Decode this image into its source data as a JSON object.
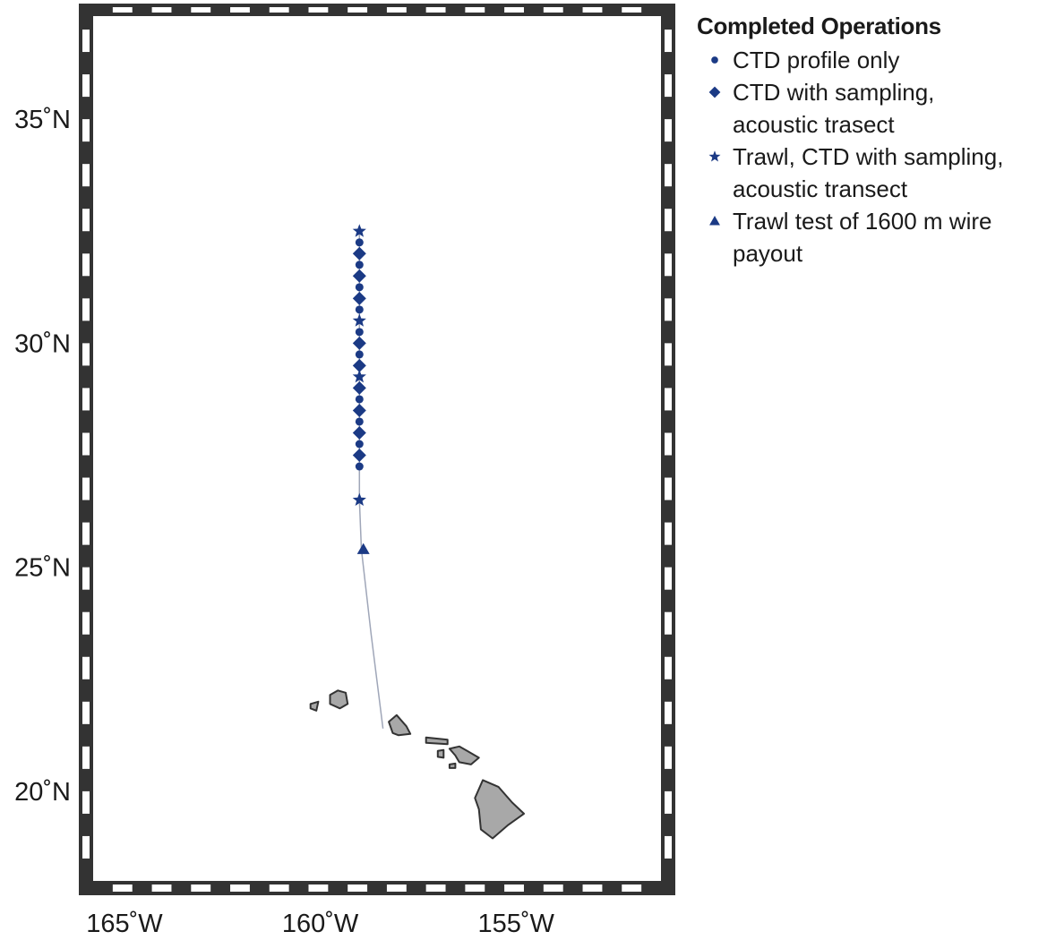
{
  "map": {
    "lon_range": [
      -165.8,
      -151.3
    ],
    "lat_range": [
      18.0,
      37.3
    ],
    "colors": {
      "marker": "#1b3a85",
      "land": "#a8a8a8",
      "coast": "#333333",
      "track": "#9fa6b8",
      "frame_dark": "#333333"
    },
    "lon_ticks": [
      {
        "value": -165,
        "label": "165˚W"
      },
      {
        "value": -160,
        "label": "160˚W"
      },
      {
        "value": -155,
        "label": "155˚W"
      }
    ],
    "lat_ticks": [
      {
        "value": 35,
        "label": "35˚N"
      },
      {
        "value": 30,
        "label": "30˚N"
      },
      {
        "value": 25,
        "label": "25˚N"
      },
      {
        "value": 20,
        "label": "20˚N"
      }
    ],
    "track": [
      [
        -158.4,
        21.4
      ],
      [
        -158.7,
        23.5
      ],
      [
        -158.95,
        25.4
      ],
      [
        -159.0,
        26.5
      ],
      [
        -159.0,
        32.5
      ]
    ],
    "stations": [
      {
        "lon": -159.0,
        "lat": 32.5,
        "type": "star"
      },
      {
        "lon": -159.0,
        "lat": 32.25,
        "type": "dot"
      },
      {
        "lon": -159.0,
        "lat": 32.0,
        "type": "diamond"
      },
      {
        "lon": -159.0,
        "lat": 31.75,
        "type": "dot"
      },
      {
        "lon": -159.0,
        "lat": 31.5,
        "type": "diamond"
      },
      {
        "lon": -159.0,
        "lat": 31.25,
        "type": "dot"
      },
      {
        "lon": -159.0,
        "lat": 31.0,
        "type": "diamond"
      },
      {
        "lon": -159.0,
        "lat": 30.75,
        "type": "dot"
      },
      {
        "lon": -159.0,
        "lat": 30.5,
        "type": "star"
      },
      {
        "lon": -159.0,
        "lat": 30.25,
        "type": "dot"
      },
      {
        "lon": -159.0,
        "lat": 30.0,
        "type": "diamond"
      },
      {
        "lon": -159.0,
        "lat": 29.75,
        "type": "dot"
      },
      {
        "lon": -159.0,
        "lat": 29.5,
        "type": "diamond"
      },
      {
        "lon": -159.0,
        "lat": 29.25,
        "type": "star"
      },
      {
        "lon": -159.0,
        "lat": 29.0,
        "type": "diamond"
      },
      {
        "lon": -159.0,
        "lat": 28.75,
        "type": "dot"
      },
      {
        "lon": -159.0,
        "lat": 28.5,
        "type": "diamond"
      },
      {
        "lon": -159.0,
        "lat": 28.25,
        "type": "dot"
      },
      {
        "lon": -159.0,
        "lat": 28.0,
        "type": "diamond"
      },
      {
        "lon": -159.0,
        "lat": 27.75,
        "type": "dot"
      },
      {
        "lon": -159.0,
        "lat": 27.5,
        "type": "diamond"
      },
      {
        "lon": -159.0,
        "lat": 27.25,
        "type": "dot"
      },
      {
        "lon": -159.0,
        "lat": 26.5,
        "type": "star"
      },
      {
        "lon": -158.9,
        "lat": 25.4,
        "type": "triangle"
      }
    ],
    "islands": [
      {
        "name": "niihau",
        "points": [
          [
            -160.25,
            21.95
          ],
          [
            -160.05,
            22.0
          ],
          [
            -160.1,
            21.8
          ],
          [
            -160.25,
            21.85
          ]
        ]
      },
      {
        "name": "kauai",
        "points": [
          [
            -159.75,
            22.15
          ],
          [
            -159.55,
            22.25
          ],
          [
            -159.35,
            22.2
          ],
          [
            -159.3,
            21.95
          ],
          [
            -159.5,
            21.85
          ],
          [
            -159.75,
            21.95
          ]
        ]
      },
      {
        "name": "oahu",
        "points": [
          [
            -158.25,
            21.55
          ],
          [
            -158.05,
            21.7
          ],
          [
            -157.8,
            21.45
          ],
          [
            -157.7,
            21.28
          ],
          [
            -158.0,
            21.25
          ],
          [
            -158.15,
            21.3
          ]
        ]
      },
      {
        "name": "molokai",
        "points": [
          [
            -157.3,
            21.2
          ],
          [
            -156.75,
            21.15
          ],
          [
            -156.75,
            21.05
          ],
          [
            -157.3,
            21.08
          ]
        ]
      },
      {
        "name": "lanai",
        "points": [
          [
            -157.0,
            20.9
          ],
          [
            -156.85,
            20.92
          ],
          [
            -156.85,
            20.75
          ],
          [
            -157.0,
            20.77
          ]
        ]
      },
      {
        "name": "maui",
        "points": [
          [
            -156.7,
            20.95
          ],
          [
            -156.45,
            21.0
          ],
          [
            -156.25,
            20.9
          ],
          [
            -155.95,
            20.75
          ],
          [
            -156.15,
            20.6
          ],
          [
            -156.45,
            20.65
          ],
          [
            -156.55,
            20.8
          ]
        ]
      },
      {
        "name": "kahoolawe",
        "points": [
          [
            -156.7,
            20.6
          ],
          [
            -156.55,
            20.62
          ],
          [
            -156.55,
            20.52
          ],
          [
            -156.7,
            20.52
          ]
        ]
      },
      {
        "name": "hawaii",
        "points": [
          [
            -155.85,
            20.25
          ],
          [
            -155.45,
            20.1
          ],
          [
            -155.1,
            19.75
          ],
          [
            -154.8,
            19.5
          ],
          [
            -155.2,
            19.25
          ],
          [
            -155.6,
            18.95
          ],
          [
            -155.9,
            19.15
          ],
          [
            -155.95,
            19.6
          ],
          [
            -156.05,
            19.85
          ]
        ]
      }
    ]
  },
  "legend": {
    "title": "Completed Operations",
    "items": [
      {
        "symbol": "dot",
        "lines": [
          "CTD profile only"
        ]
      },
      {
        "symbol": "diamond",
        "lines": [
          "CTD with sampling,",
          "acoustic trasect"
        ]
      },
      {
        "symbol": "star",
        "lines": [
          "Trawl, CTD with sampling,",
          "acoustic transect"
        ]
      },
      {
        "symbol": "triangle",
        "lines": [
          "Trawl test of 1600 m wire",
          "payout"
        ]
      }
    ]
  }
}
